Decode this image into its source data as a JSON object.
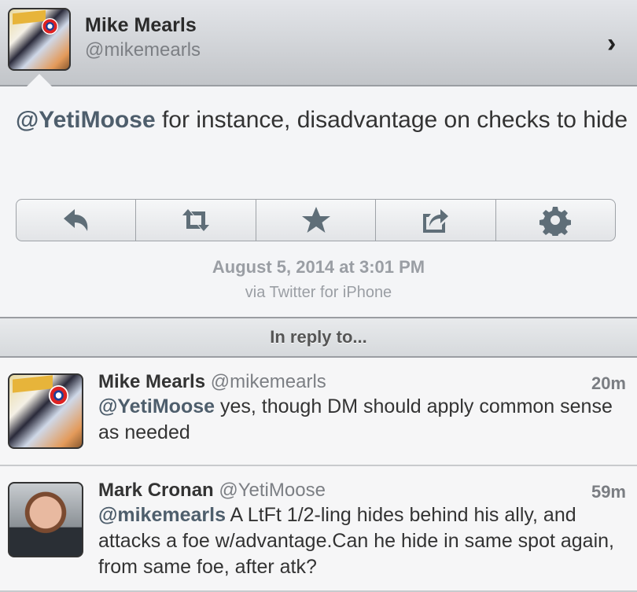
{
  "header": {
    "name": "Mike Mearls",
    "handle": "@mikemearls",
    "chevron_icon": "chevron-right-icon"
  },
  "tweet": {
    "mention": "@YetiMoose",
    "text": " for instance, disadvantage on checks to hide",
    "date": "August 5, 2014 at 3:01 PM",
    "via": "via Twitter for iPhone"
  },
  "actions": [
    {
      "icon": "reply-icon"
    },
    {
      "icon": "retweet-icon"
    },
    {
      "icon": "star-icon"
    },
    {
      "icon": "share-icon"
    },
    {
      "icon": "gear-icon"
    }
  ],
  "reply_bar": {
    "label": "In reply to..."
  },
  "replies": [
    {
      "name": "Mike Mearls",
      "handle": "@mikemearls",
      "time": "20m",
      "mention": "@YetiMoose",
      "text": " yes, though DM should apply common sense as needed"
    },
    {
      "name": "Mark Cronan",
      "handle": "@YetiMoose",
      "time": "59m",
      "mention": "@mikemearls",
      "text": " A LtFt 1/2-ling hides behind his ally, and attacks a foe w/advantage.Can he hide in same spot again, from same foe, after atk?"
    }
  ]
}
